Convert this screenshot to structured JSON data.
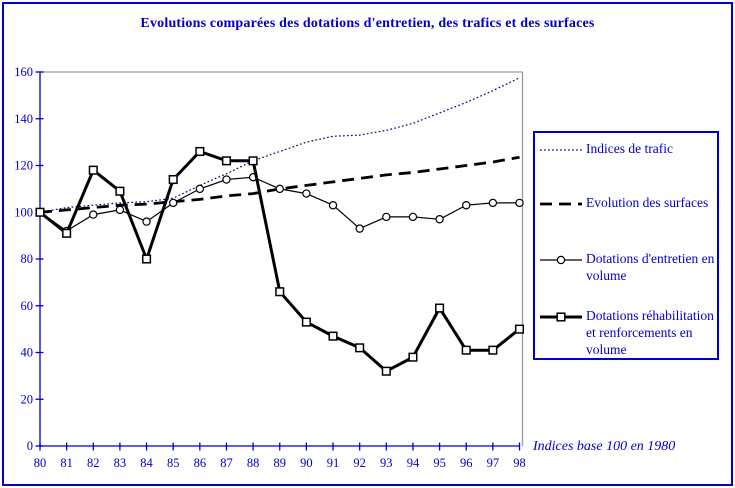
{
  "title": "Evolutions comparées des dotations d'entretien, des trafics et des surfaces",
  "annotation": "Indices base 100 en 1980",
  "colors": {
    "blue_text": "#0000cc",
    "blue_axis": "#0000cc",
    "navy_dotted_line": "#000080",
    "black_line": "#000000",
    "gray_plot_border": "#9a9a9a",
    "page_border": "#0000cc",
    "background": "#ffffff"
  },
  "legend": {
    "items": [
      {
        "label": "Indices de trafic",
        "style": "dotted-navy"
      },
      {
        "label": "Evolution des surfaces",
        "style": "dashed-thick"
      },
      {
        "label": "Dotations d'entretien en\nvolume",
        "style": "line-circle"
      },
      {
        "label": "Dotations réhabilitation\net renforcements en\nvolume",
        "style": "thick-square"
      }
    ]
  },
  "chart_data": {
    "type": "line",
    "title": "Evolutions comparées des dotations d'entretien, des trafics et des surfaces",
    "xlabel": "",
    "ylabel": "",
    "x_labels": [
      "80",
      "81",
      "82",
      "83",
      "84",
      "85",
      "86",
      "87",
      "88",
      "89",
      "90",
      "91",
      "92",
      "93",
      "94",
      "95",
      "96",
      "97",
      "98"
    ],
    "ylim": [
      0,
      160
    ],
    "ytick_step": 20,
    "grid": "top-gridline-only",
    "legend_position": "right",
    "note": "Indices base 100 en 1980",
    "series": [
      {
        "name": "Indices de trafic",
        "style": "dotted-navy",
        "values": [
          100,
          102,
          103,
          104,
          104.5,
          106,
          111.5,
          116.5,
          122,
          126,
          130,
          132.5,
          133,
          135,
          138,
          142.5,
          147,
          152,
          157.5
        ]
      },
      {
        "name": "Evolution des surfaces",
        "style": "dashed-thick",
        "values": [
          100,
          101,
          102,
          103,
          103.5,
          104.5,
          105.5,
          107,
          108,
          110,
          111.5,
          113,
          114.5,
          116,
          117,
          118.5,
          120,
          121.5,
          123.5
        ]
      },
      {
        "name": "Dotations d'entretien en volume",
        "style": "line-circle",
        "values": [
          100,
          92,
          99,
          101,
          96,
          104,
          110,
          114,
          115,
          110,
          108,
          103,
          93,
          98,
          98,
          97,
          103,
          104,
          104
        ]
      },
      {
        "name": "Dotations réhabilitation et renforcements en volume",
        "style": "thick-square",
        "values": [
          100,
          91,
          118,
          109,
          80,
          114,
          126,
          122,
          122,
          66,
          53,
          47,
          42,
          32,
          38,
          59,
          41,
          41,
          50
        ]
      }
    ]
  }
}
